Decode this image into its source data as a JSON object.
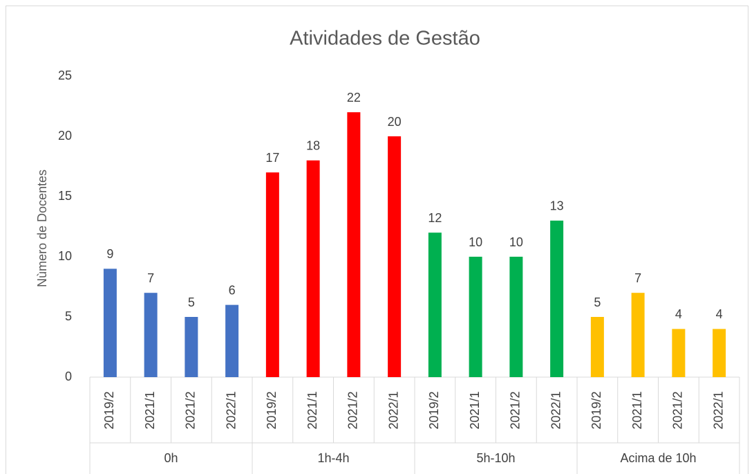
{
  "chart_data": {
    "type": "bar",
    "title": "Atividades de Gestão",
    "y_label": "Nùmero de Docentes",
    "groups": [
      {
        "name": "0h",
        "color": "#4472c4",
        "categories": [
          "2019/2",
          "2021/1",
          "2021/2",
          "2022/1"
        ],
        "values": [
          9,
          7,
          5,
          6
        ]
      },
      {
        "name": "1h-4h",
        "color": "#ff0000",
        "categories": [
          "2019/2",
          "2021/1",
          "2021/2",
          "2022/1"
        ],
        "values": [
          17,
          18,
          22,
          20
        ]
      },
      {
        "name": "5h-10h",
        "color": "#00b050",
        "categories": [
          "2019/2",
          "2021/1",
          "2021/2",
          "2022/1"
        ],
        "values": [
          12,
          10,
          10,
          13
        ]
      },
      {
        "name": "Acima de 10h",
        "color": "#ffc000",
        "categories": [
          "2019/2",
          "2021/1",
          "2021/2",
          "2022/1"
        ],
        "values": [
          5,
          7,
          4,
          4
        ]
      }
    ],
    "ylim": [
      0,
      25
    ],
    "yticks": [
      0,
      5,
      10,
      15,
      20,
      25
    ],
    "grid": false
  }
}
